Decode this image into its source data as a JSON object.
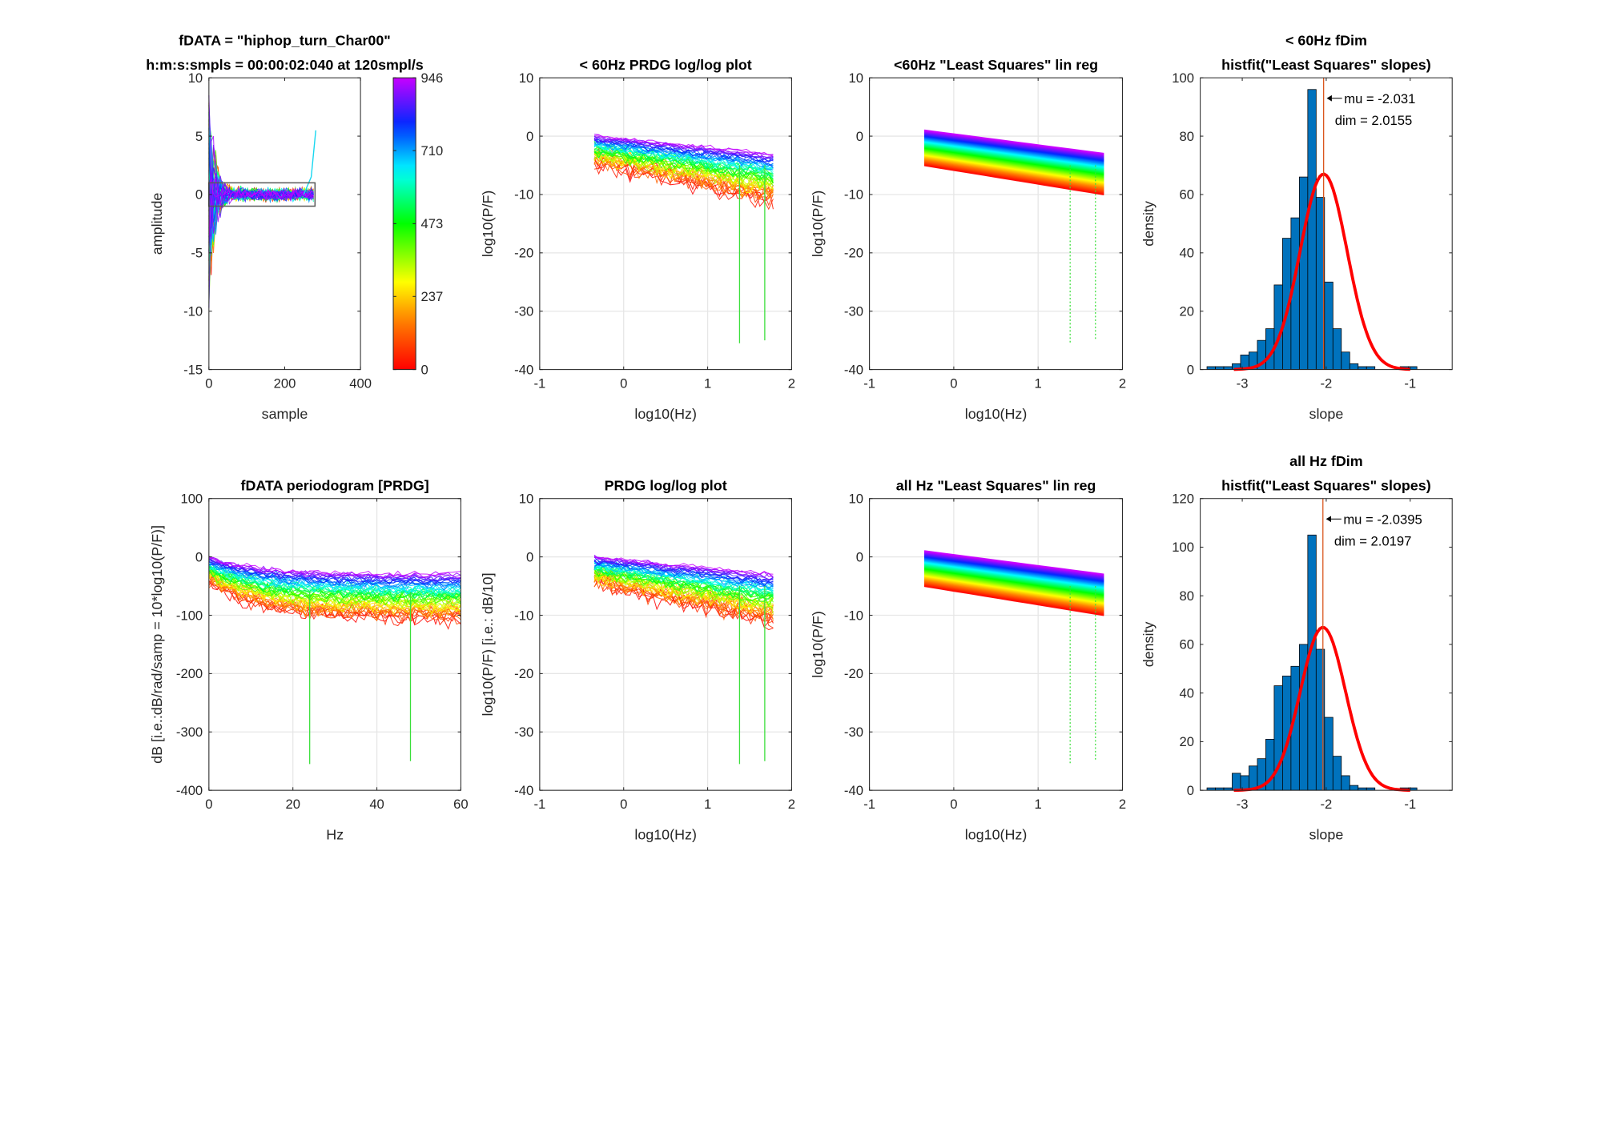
{
  "colorbar": {
    "ticks": [
      "0",
      "237",
      "473",
      "710",
      "946"
    ],
    "max": 946
  },
  "chart_data": [
    {
      "id": "time",
      "type": "line",
      "title": [
        "fDATA = \"hiphop_turn_Char00\"",
        "h:m:s:smpls = 00:00:02:040 at 120smpl/s"
      ],
      "xlabel": "sample",
      "ylabel": "amplitude",
      "xlim": [
        0,
        400
      ],
      "ylim": [
        -15,
        10
      ],
      "xticks": [
        "0",
        "200",
        "400"
      ],
      "yticks": [
        "-15",
        "-10",
        "-5",
        "0",
        "5",
        "10"
      ],
      "grid": false,
      "series_summary": {
        "count": 946,
        "length_samples": 280,
        "initial_spread": [
          -10,
          10
        ],
        "steady_spread": [
          -1,
          1
        ],
        "end_spike": 5.5
      }
    },
    {
      "id": "lowPRDG",
      "type": "line",
      "title": [
        "< 60Hz PRDG log/log plot"
      ],
      "xlabel": "log10(Hz)",
      "ylabel": "log10(P/F)",
      "xlim": [
        -1,
        2
      ],
      "ylim": [
        -40,
        10
      ],
      "xticks": [
        "-1",
        "0",
        "1",
        "2"
      ],
      "yticks": [
        "-40",
        "-30",
        "-20",
        "-10",
        "0",
        "10"
      ],
      "grid": true,
      "series_summary": {
        "x_range": [
          -0.35,
          1.78
        ],
        "top_start": 0,
        "top_end": -3,
        "bottom_start": -4.5,
        "bottom_end": -11,
        "spikes": [
          {
            "x": 1.38,
            "y": -35.5
          },
          {
            "x": 1.68,
            "y": -35
          }
        ]
      }
    },
    {
      "id": "lowLS",
      "type": "line",
      "title": [
        "<60Hz \"Least Squares\" lin reg"
      ],
      "xlabel": "log10(Hz)",
      "ylabel": "log10(P/F)",
      "xlim": [
        -1,
        2
      ],
      "ylim": [
        -40,
        10
      ],
      "xticks": [
        "-1",
        "0",
        "1",
        "2"
      ],
      "yticks": [
        "-40",
        "-30",
        "-20",
        "-10",
        "0",
        "10"
      ],
      "grid": true,
      "series_summary": {
        "x_range": [
          -0.35,
          1.78
        ],
        "top_start": 1,
        "top_end": -3,
        "bottom_start": -5,
        "bottom_end": -10,
        "spikes": [
          {
            "x": 1.38,
            "y": -35.5
          },
          {
            "x": 1.68,
            "y": -35
          }
        ]
      }
    },
    {
      "id": "lowHist",
      "type": "bar",
      "title": [
        "< 60Hz fDim",
        "histfit(\"Least Squares\" slopes)"
      ],
      "xlabel": "slope",
      "ylabel": "density",
      "xlim": [
        -3.5,
        -0.5
      ],
      "ylim": [
        0,
        100
      ],
      "xticks": [
        "-3",
        "-2",
        "-1"
      ],
      "yticks": [
        "0",
        "20",
        "40",
        "60",
        "80",
        "100"
      ],
      "grid": false,
      "bin_edges_start": -3.42,
      "bin_width": 0.1,
      "values": [
        1,
        1,
        1,
        2,
        5,
        6,
        10,
        14,
        29,
        45,
        52,
        66,
        96,
        59,
        30,
        14,
        6,
        2,
        1,
        1,
        0,
        0,
        0,
        1,
        1
      ],
      "fit": {
        "mu": -2.031,
        "sigma": 0.28,
        "peak": 67
      },
      "annotations": [
        "mu = -2.031",
        "dim = 2.0155"
      ]
    },
    {
      "id": "allPRDG",
      "type": "line",
      "title": [
        "fDATA periodogram [PRDG]"
      ],
      "xlabel": "Hz",
      "ylabel": "dB [i.e.:dB/rad/samp = 10*log10(P/F)]",
      "xlim": [
        0,
        60
      ],
      "ylim": [
        -400,
        100
      ],
      "xticks": [
        "0",
        "20",
        "40",
        "60"
      ],
      "yticks": [
        "-400",
        "-300",
        "-200",
        "-100",
        "0",
        "100"
      ],
      "grid": true,
      "series_summary": {
        "x_range": [
          0,
          60
        ],
        "top_start": 0,
        "top_end": -30,
        "bottom_start": -40,
        "bottom_end": -105,
        "spikes": [
          {
            "x": 24,
            "y": -355
          },
          {
            "x": 48,
            "y": -350
          }
        ]
      }
    },
    {
      "id": "allPRDGlog",
      "type": "line",
      "title": [
        "PRDG log/log plot"
      ],
      "xlabel": "log10(Hz)",
      "ylabel": "log10(P/F) [i.e.: dB/10]",
      "xlim": [
        -1,
        2
      ],
      "ylim": [
        -40,
        10
      ],
      "xticks": [
        "-1",
        "0",
        "1",
        "2"
      ],
      "yticks": [
        "-40",
        "-30",
        "-20",
        "-10",
        "0",
        "10"
      ],
      "grid": true,
      "series_summary": {
        "x_range": [
          -0.35,
          1.78
        ],
        "top_start": 0,
        "top_end": -3,
        "bottom_start": -4.5,
        "bottom_end": -11,
        "spikes": [
          {
            "x": 1.38,
            "y": -35.5
          },
          {
            "x": 1.68,
            "y": -35
          }
        ]
      }
    },
    {
      "id": "allLS",
      "type": "line",
      "title": [
        "all Hz \"Least Squares\" lin reg"
      ],
      "xlabel": "log10(Hz)",
      "ylabel": "log10(P/F)",
      "xlim": [
        -1,
        2
      ],
      "ylim": [
        -40,
        10
      ],
      "xticks": [
        "-1",
        "0",
        "1",
        "2"
      ],
      "yticks": [
        "-40",
        "-30",
        "-20",
        "-10",
        "0",
        "10"
      ],
      "grid": true,
      "series_summary": {
        "x_range": [
          -0.35,
          1.78
        ],
        "top_start": 1,
        "top_end": -3,
        "bottom_start": -5,
        "bottom_end": -10,
        "spikes": [
          {
            "x": 1.38,
            "y": -35.5
          },
          {
            "x": 1.68,
            "y": -35
          }
        ]
      }
    },
    {
      "id": "allHist",
      "type": "bar",
      "title": [
        "all Hz fDim",
        "histfit(\"Least Squares\" slopes)"
      ],
      "xlabel": "slope",
      "ylabel": "density",
      "xlim": [
        -3.5,
        -0.5
      ],
      "ylim": [
        0,
        120
      ],
      "xticks": [
        "-3",
        "-2",
        "-1"
      ],
      "yticks": [
        "0",
        "20",
        "40",
        "60",
        "80",
        "100",
        "120"
      ],
      "grid": false,
      "bin_edges_start": -3.42,
      "bin_width": 0.1,
      "values": [
        1,
        1,
        1,
        7,
        6,
        10,
        13,
        21,
        43,
        47,
        51,
        60,
        105,
        58,
        30,
        14,
        6,
        2,
        1,
        1,
        0,
        0,
        0,
        1,
        1
      ],
      "fit": {
        "mu": -2.0395,
        "sigma": 0.27,
        "peak": 67
      },
      "annotations": [
        "mu = -2.0395",
        "dim = 2.0197"
      ]
    }
  ]
}
